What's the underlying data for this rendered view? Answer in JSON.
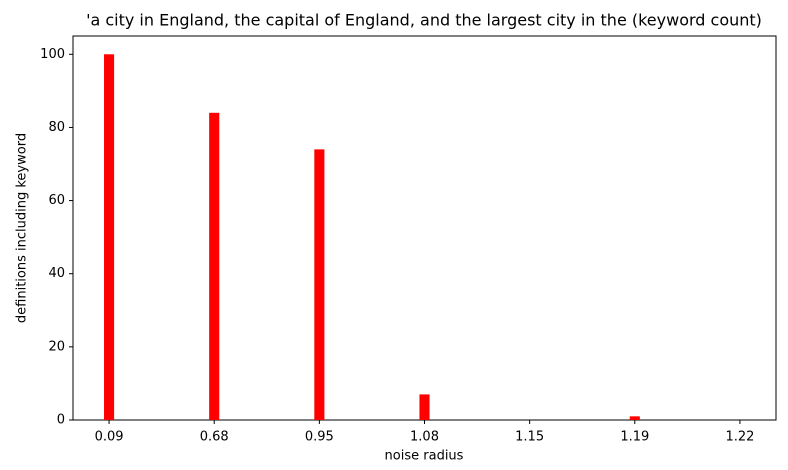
{
  "chart_data": {
    "type": "bar",
    "title": "'a city in England, the capital of England, and the largest city in the (keyword count)",
    "x_label": "noise radius",
    "y_label": "definitions including keyword",
    "categories": [
      "0.09",
      "0.68",
      "0.95",
      "1.08",
      "1.15",
      "1.19",
      "1.22"
    ],
    "values": [
      100,
      84,
      74,
      7,
      0,
      1,
      0
    ],
    "color": "#ff0000",
    "ylim": [
      0,
      105
    ],
    "yticks": [
      0,
      20,
      40,
      60,
      80,
      100
    ],
    "grid": false
  }
}
